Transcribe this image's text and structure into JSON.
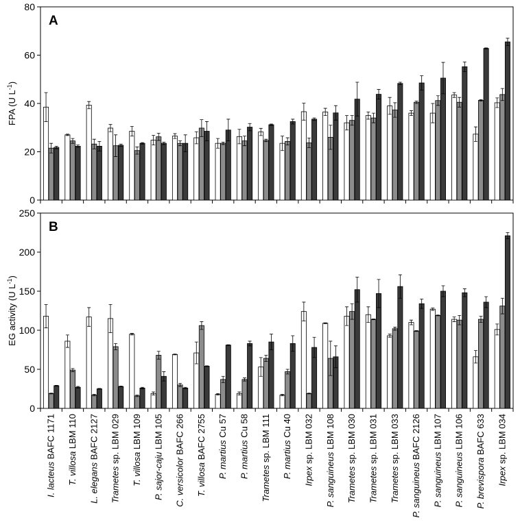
{
  "chart_data": {
    "type": "bar",
    "categories": [
      {
        "genus": "I. lacteus",
        "suffix": " BAFC 1171"
      },
      {
        "genus": "T. villosa",
        "suffix": " LBM 110"
      },
      {
        "genus": "L. elegans",
        "suffix": " BAFC 2127"
      },
      {
        "genus": "Trametes",
        "suffix": " sp. LBM 029"
      },
      {
        "genus": "T. villosa",
        "suffix": " LBM 109"
      },
      {
        "genus": "P. sajor-caju",
        "suffix": " LBM 105"
      },
      {
        "genus": "C. versicolor",
        "suffix": " BAFC 266"
      },
      {
        "genus": "T. villosa",
        "suffix": " BAFC 2755"
      },
      {
        "genus": "P. martius",
        "suffix": " Cu 57"
      },
      {
        "genus": "P. martius",
        "suffix": " Cu 58"
      },
      {
        "genus": "Trametes",
        "suffix": " sp. LBM 111"
      },
      {
        "genus": "P. martius",
        "suffix": " Cu 40"
      },
      {
        "genus": "Irpex",
        "suffix": " sp. LBM 032"
      },
      {
        "genus": "P. sanguineus",
        "suffix": " LBM 108"
      },
      {
        "genus": "Trametes",
        "suffix": " sp. LBM 030"
      },
      {
        "genus": "Trametes",
        "suffix": " sp. LBM 031"
      },
      {
        "genus": "Trametes",
        "suffix": " sp. LBM 033"
      },
      {
        "genus": "P. sanguineus",
        "suffix": " BAFC 2126"
      },
      {
        "genus": "P. sanguineus",
        "suffix": " LBM 107"
      },
      {
        "genus": "P. sanguineus",
        "suffix": " LBM 106"
      },
      {
        "genus": "P. brevispora",
        "suffix": " BAFC 633"
      },
      {
        "genus": "Irpex",
        "suffix": " sp. LBM 034"
      }
    ],
    "series_colors": [
      "#ffffff",
      "#8c8c8c",
      "#3a3a3a"
    ],
    "panels": [
      {
        "letter": "A",
        "ylabel": "FPA (U L",
        "ylabel_sup": "-1",
        "ylabel_close": ")",
        "ylim": [
          0,
          80
        ],
        "yticks": [
          0,
          20,
          40,
          60,
          80
        ],
        "series": [
          {
            "values": [
              38.5,
              27,
              39.3,
              29.8,
              28.5,
              24.8,
              26.5,
              25.8,
              23.5,
              26.3,
              28.2,
              23.5,
              36.6,
              36.5,
              32,
              35,
              39,
              36,
              36,
              43.5,
              27.3,
              40.3
            ],
            "errors": [
              6,
              0.3,
              1.5,
              1.5,
              2,
              2,
              1,
              2.5,
              2,
              3,
              1.5,
              3,
              3.5,
              1.5,
              3,
              1.5,
              3.5,
              1,
              4,
              1,
              3,
              2
            ]
          },
          {
            "values": [
              21.5,
              24.5,
              23.2,
              22.5,
              20.5,
              26.2,
              23.5,
              29.8,
              23.5,
              24.5,
              24.7,
              24.3,
              23.7,
              26,
              33,
              34,
              37.3,
              40.5,
              41.2,
              40.5,
              41.3,
              43.7
            ],
            "errors": [
              2,
              1,
              2,
              4.5,
              1.5,
              1.5,
              1,
              3.5,
              0.5,
              2,
              0.5,
              1.5,
              2,
              5,
              2,
              2,
              3,
              0.5,
              2,
              2,
              0.3,
              2.5
            ]
          },
          {
            "values": [
              21.8,
              22.3,
              22.3,
              22.7,
              23.5,
              23.5,
              23.5,
              28.5,
              29,
              30.2,
              31.2,
              32.5,
              33.5,
              36.1,
              41.8,
              43.8,
              48.3,
              48.5,
              50.5,
              55.2,
              62.8,
              65.5
            ],
            "errors": [
              0.5,
              0.5,
              2,
              0.5,
              0.3,
              0.5,
              3.5,
              4,
              4.5,
              1.5,
              0.3,
              1,
              0.5,
              3,
              7,
              2,
              0.5,
              3,
              6.5,
              2,
              0.2,
              1.5
            ]
          }
        ]
      },
      {
        "letter": "B",
        "ylabel": "EG activity (U L",
        "ylabel_sup": "-1",
        "ylabel_close": ")",
        "ylim": [
          0,
          250
        ],
        "yticks": [
          0,
          50,
          100,
          150,
          200,
          250
        ],
        "series": [
          {
            "values": [
              118,
              86,
              117,
              115,
              95,
              19,
              69,
              71,
              18,
              19,
              53,
              17,
              124,
              109,
              118,
              120,
              93,
              110,
              127,
              114,
              66,
              101
            ],
            "errors": [
              15,
              8,
              12,
              18,
              1,
              2,
              0.5,
              14,
              1,
              2,
              12,
              1,
              12,
              0.5,
              12,
              10,
              2,
              3,
              1.5,
              3,
              8,
              7
            ]
          },
          {
            "values": [
              19,
              49,
              17,
              79,
              16,
              68,
              30,
              106,
              37,
              37,
              64,
              47,
              19,
              64,
              124,
              114,
              102,
              99,
              119,
              113,
              114,
              131
            ],
            "errors": [
              0.5,
              2,
              1,
              4,
              1,
              5,
              2,
              5,
              4,
              2,
              4,
              3,
              0.5,
              22,
              10,
              0.5,
              2,
              0.5,
              0.5,
              6,
              4,
              10
            ]
          },
          {
            "values": [
              29,
              27,
              25,
              28,
              26,
              41,
              26,
              54,
              81,
              83,
              85,
              83,
              78,
              66,
              152,
              147,
              156,
              134,
              150,
              148,
              136,
              221
            ],
            "errors": [
              0.5,
              1,
              0.5,
              0.5,
              1,
              6,
              1,
              0.5,
              0.5,
              3,
              10,
              10,
              13,
              14,
              16,
              18,
              15,
              6,
              7,
              5,
              7,
              4
            ]
          }
        ]
      }
    ]
  }
}
